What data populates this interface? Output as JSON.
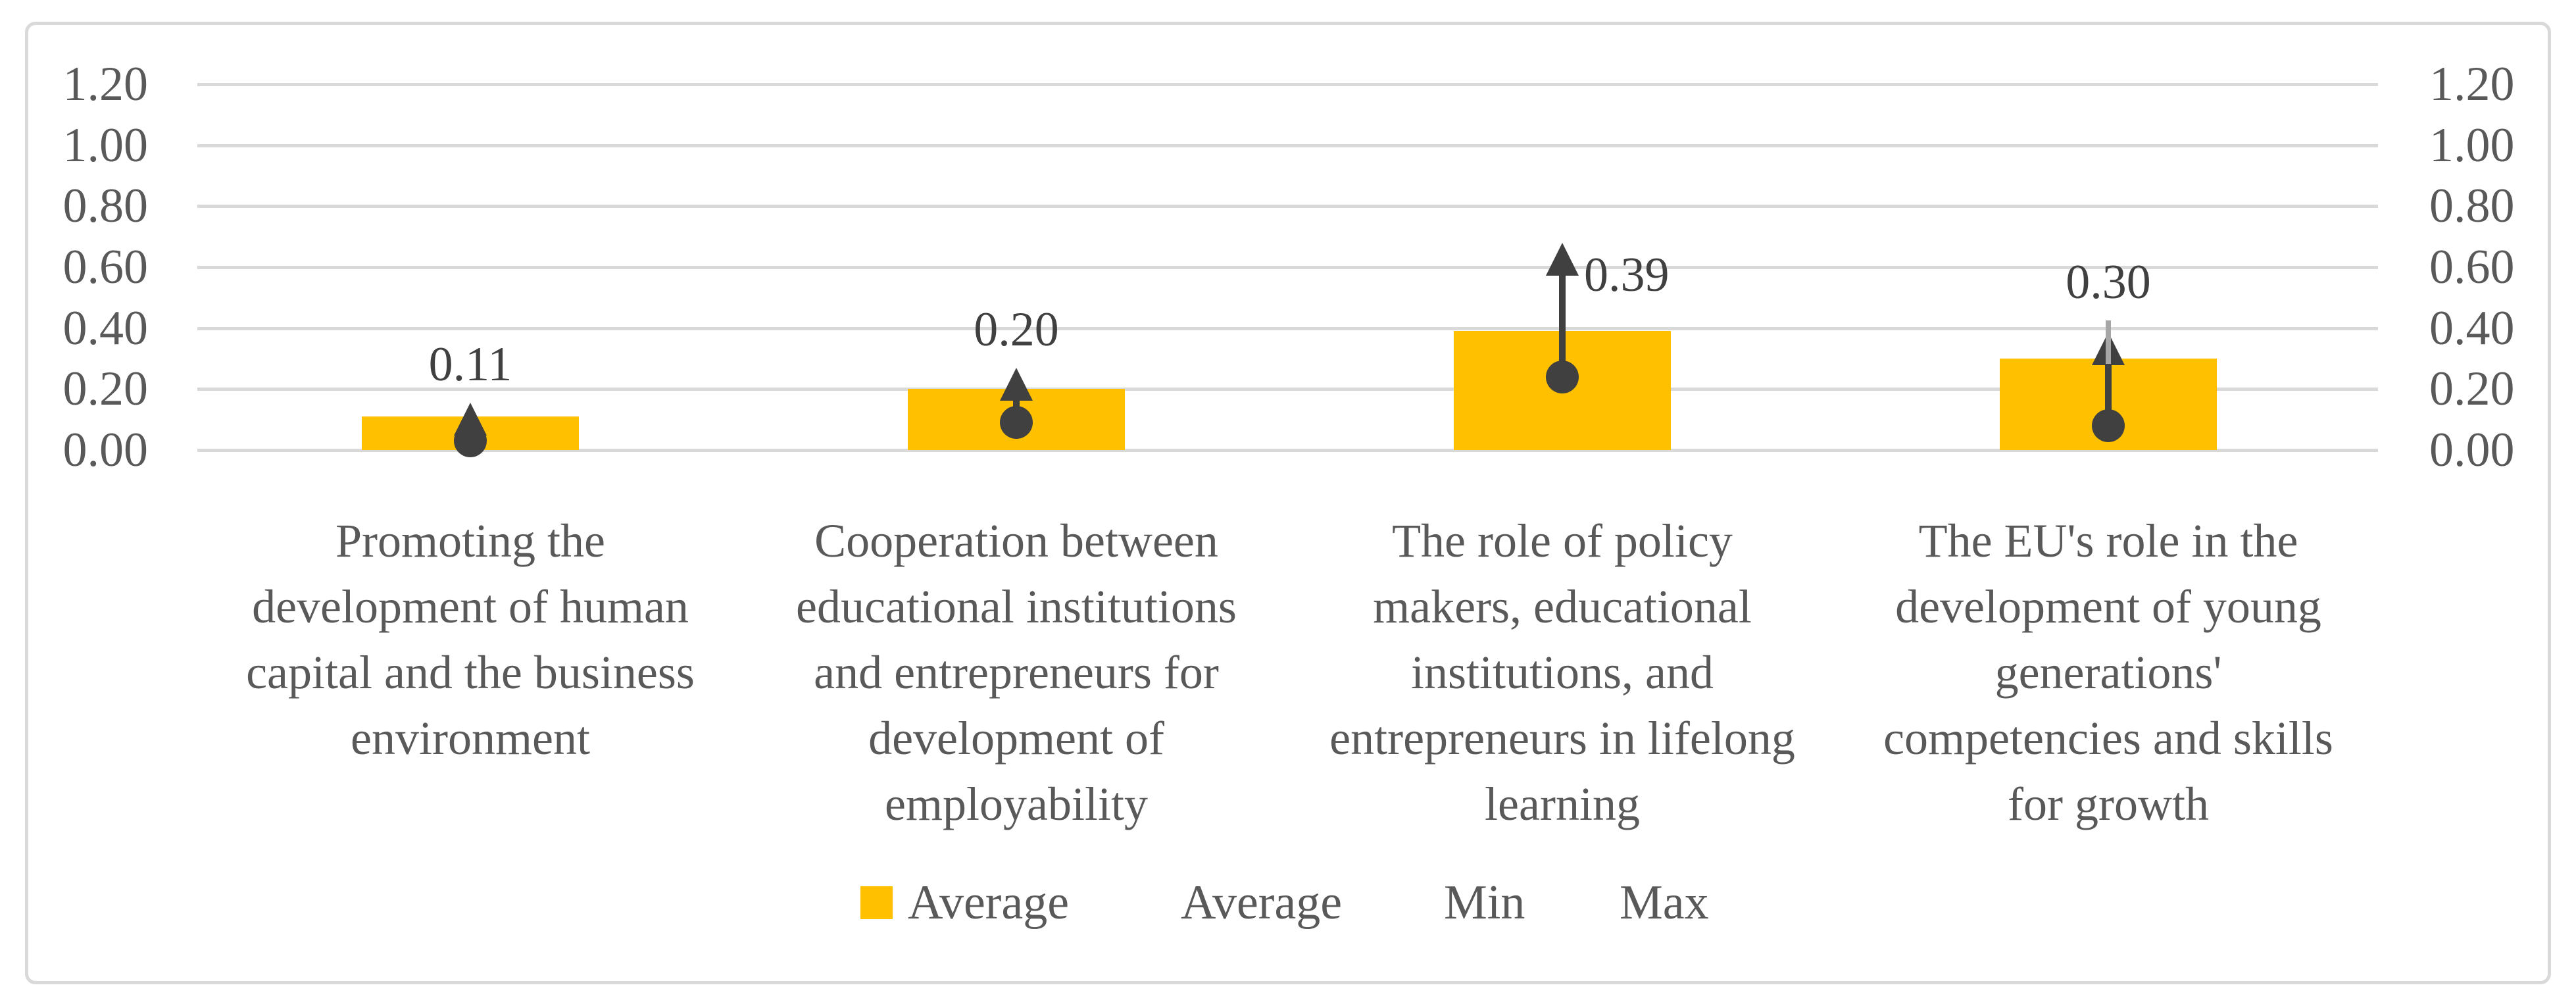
{
  "figure": {
    "kind": "embedded-chart-figure",
    "background": "#FFFFFF",
    "border_color": "#D9D9D9"
  },
  "chart_data": {
    "type": "bar",
    "title": "",
    "xlabel": "",
    "ylabel": "",
    "ylim": [
      0,
      1.2
    ],
    "grid": true,
    "y_axis": {
      "position": "both",
      "tick_values": [
        0.0,
        0.2,
        0.4,
        0.6,
        0.8,
        1.0,
        1.2
      ],
      "tick_labels": [
        "0.00",
        "0.20",
        "0.40",
        "0.60",
        "0.80",
        "1.00",
        "1.20"
      ]
    },
    "categories": [
      "Promoting the development of human capital and the business environment",
      "Cooperation between educational institutions and entrepreneurs for development of employability",
      "The role of policy makers, educational institutions, and entrepreneurs in lifelong learning",
      "The EU's role in the development of young generations' competencies and skills for growth"
    ],
    "category_lines": [
      [
        "Promoting the",
        "development of human",
        "capital and the business",
        "environment"
      ],
      [
        "Cooperation between",
        "educational institutions",
        "and entrepreneurs for",
        "development of",
        "employability"
      ],
      [
        "The role of policy",
        "makers, educational",
        "institutions, and",
        "entrepreneurs in lifelong",
        "learning"
      ],
      [
        "The EU's role in the",
        "development of young",
        "generations'",
        "competencies and skills",
        "for growth"
      ]
    ],
    "series": [
      {
        "name": "Average",
        "kind": "column",
        "color": "#FFC000",
        "values": [
          0.11,
          0.2,
          0.39,
          0.3
        ]
      },
      {
        "name": "Average",
        "kind": "marker-hidden",
        "values": []
      },
      {
        "name": "Min",
        "kind": "marker-dot",
        "color": "#404040",
        "values": [
          0.03,
          0.09,
          0.24,
          0.08
        ]
      },
      {
        "name": "Max",
        "kind": "marker-arrow",
        "color": "#404040",
        "values": [
          0.155,
          0.27,
          0.68,
          0.425
        ],
        "arrow_tip_values": [
          0.155,
          0.27,
          0.68,
          0.387
        ],
        "gray_tail_values": [
          null,
          null,
          null,
          0.425
        ],
        "gray_tail_color": "#A6A6A6"
      }
    ],
    "data_labels": {
      "text": [
        "0.11",
        "0.20",
        "0.39",
        "0.30"
      ],
      "placement": [
        "above",
        "above",
        "right",
        "above"
      ],
      "color": "#404040"
    },
    "legend": {
      "position": "bottom",
      "items": [
        {
          "label": "Average",
          "swatch_color": "#FFC000"
        },
        {
          "label": "Average",
          "swatch_color": null
        },
        {
          "label": "Min",
          "swatch_color": null
        },
        {
          "label": "Max",
          "swatch_color": null
        }
      ]
    },
    "colors": {
      "bar": "#FFC000",
      "marker": "#404040",
      "gridline": "#D9D9D9",
      "axis_text": "#595959",
      "category_text": "#595959",
      "data_label_text": "#404040",
      "whisker": "#A6A6A6",
      "border": "#D9D9D9"
    }
  }
}
